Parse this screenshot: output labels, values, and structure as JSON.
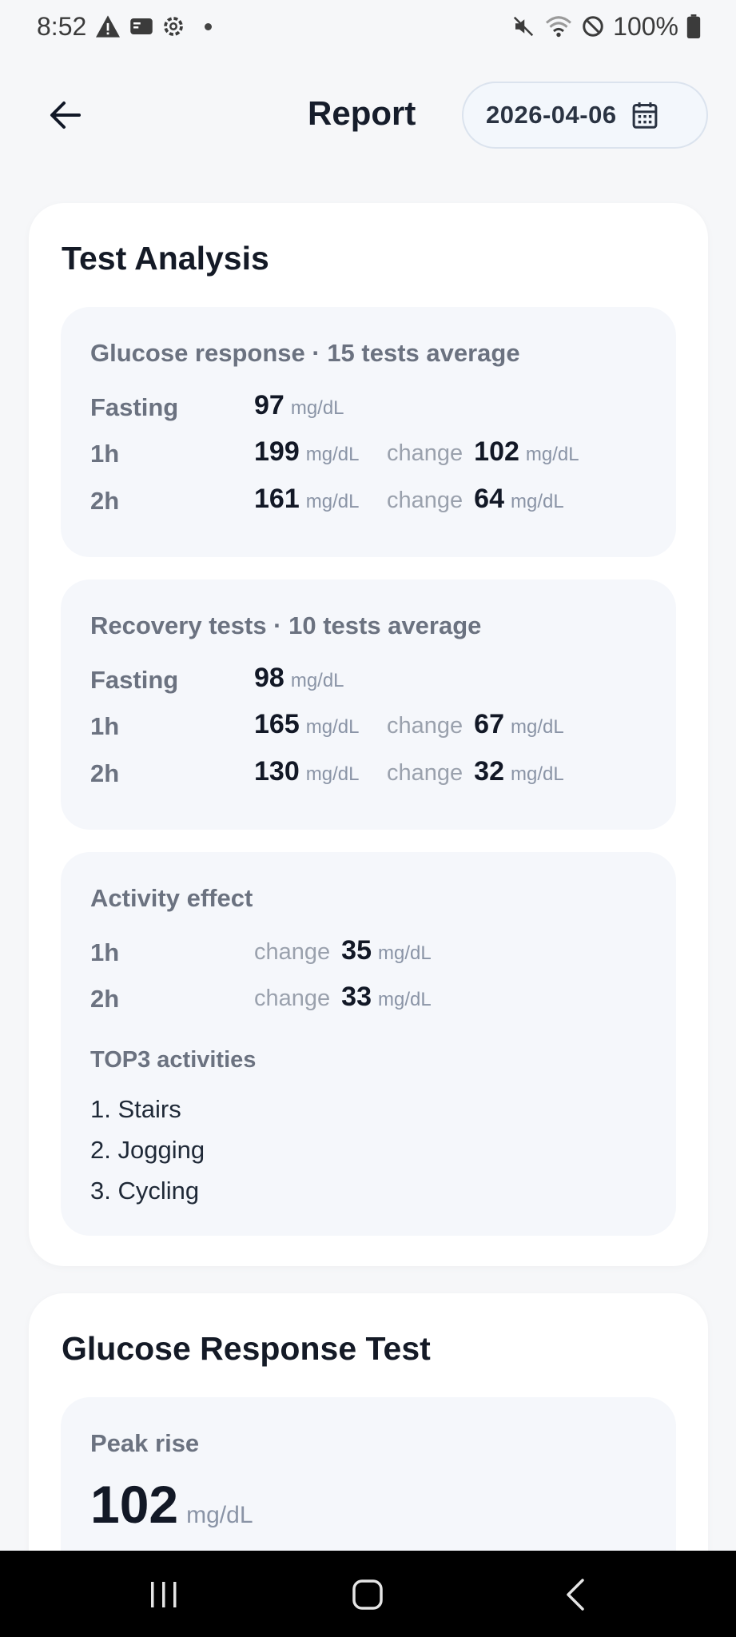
{
  "status": {
    "time": "8:52",
    "battery": "100%"
  },
  "header": {
    "title": "Report",
    "date": "2026-04-06"
  },
  "analysis": {
    "title": "Test Analysis",
    "glucose": {
      "title": "Glucose response · 15 tests average",
      "fasting_label": "Fasting",
      "fasting": "97",
      "h1_label": "1h",
      "h1": "199",
      "h1_change": "102",
      "h2_label": "2h",
      "h2": "161",
      "h2_change": "64"
    },
    "recovery": {
      "title": "Recovery tests · 10 tests average",
      "fasting_label": "Fasting",
      "fasting": "98",
      "h1_label": "1h",
      "h1": "165",
      "h1_change": "67",
      "h2_label": "2h",
      "h2": "130",
      "h2_change": "32"
    },
    "activity": {
      "title": "Activity effect",
      "h1_label": "1h",
      "h1_change": "35",
      "h2_label": "2h",
      "h2_change": "33",
      "top3_title": "TOP3 activities",
      "items": [
        "1. Stairs",
        "2. Jogging",
        "3. Cycling"
      ]
    },
    "unit": "mg/dL",
    "change_label": "change"
  },
  "grt": {
    "title": "Glucose Response Test",
    "peak_label": "Peak rise",
    "peak_value": "102",
    "peak_unit": "mg/dL"
  },
  "icons": {
    "back": "arrow-left-icon",
    "calendar": "calendar-icon",
    "nav_recent": "recent-apps-icon",
    "nav_home": "home-icon",
    "nav_back": "nav-back-icon"
  }
}
